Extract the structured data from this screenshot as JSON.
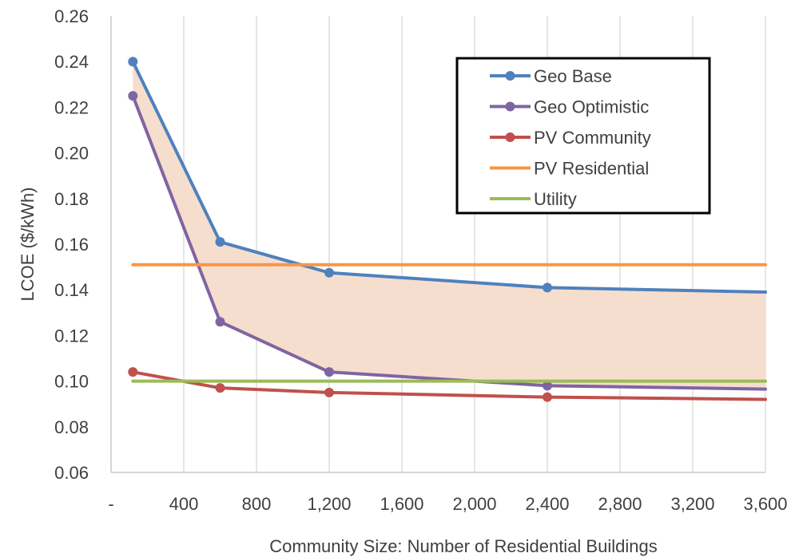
{
  "chart_data": {
    "type": "line",
    "xlabel": "Community Size: Number of Residential Buildings",
    "ylabel": "LCOE ($/kWh)",
    "xlim": [
      0,
      3600
    ],
    "ylim": [
      0.06,
      0.26
    ],
    "x_ticks": [
      {
        "value": 0,
        "label": "-"
      },
      {
        "value": 400,
        "label": "400"
      },
      {
        "value": 800,
        "label": "800"
      },
      {
        "value": 1200,
        "label": "1,200"
      },
      {
        "value": 1600,
        "label": "1,600"
      },
      {
        "value": 2000,
        "label": "2,000"
      },
      {
        "value": 2400,
        "label": "2,400"
      },
      {
        "value": 2800,
        "label": "2,800"
      },
      {
        "value": 3200,
        "label": "3,200"
      },
      {
        "value": 3600,
        "label": "3,600"
      }
    ],
    "y_ticks": [
      {
        "value": 0.06,
        "label": "0.06"
      },
      {
        "value": 0.08,
        "label": "0.08"
      },
      {
        "value": 0.1,
        "label": "0.10"
      },
      {
        "value": 0.12,
        "label": "0.12"
      },
      {
        "value": 0.14,
        "label": "0.14"
      },
      {
        "value": 0.16,
        "label": "0.16"
      },
      {
        "value": 0.18,
        "label": "0.18"
      },
      {
        "value": 0.2,
        "label": "0.20"
      },
      {
        "value": 0.22,
        "label": "0.22"
      },
      {
        "value": 0.24,
        "label": "0.24"
      },
      {
        "value": 0.26,
        "label": "0.26"
      }
    ],
    "grid": {
      "vertical": true,
      "horizontal": false
    },
    "legend_position": "top-right",
    "shaded_band": {
      "between": [
        "Geo Base",
        "Geo Optimistic"
      ],
      "color": "#f6dccb"
    },
    "series": [
      {
        "name": "Geo Base",
        "color": "#4f81bd",
        "markers": true,
        "points": [
          [
            120,
            0.24
          ],
          [
            600,
            0.161
          ],
          [
            1200,
            0.1475
          ],
          [
            2400,
            0.141
          ],
          [
            3600,
            0.139
          ]
        ],
        "marker_count": 4
      },
      {
        "name": "Geo Optimistic",
        "color": "#8064a2",
        "markers": true,
        "points": [
          [
            120,
            0.225
          ],
          [
            600,
            0.126
          ],
          [
            1200,
            0.104
          ],
          [
            2400,
            0.098
          ],
          [
            3600,
            0.0965
          ]
        ],
        "marker_count": 4
      },
      {
        "name": "PV Community",
        "color": "#c0504d",
        "markers": true,
        "points": [
          [
            120,
            0.104
          ],
          [
            600,
            0.097
          ],
          [
            1200,
            0.095
          ],
          [
            2400,
            0.093
          ],
          [
            3600,
            0.092
          ]
        ],
        "marker_count": 4
      },
      {
        "name": "PV Residential",
        "color": "#f79646",
        "markers": false,
        "points": [
          [
            120,
            0.151
          ],
          [
            3600,
            0.151
          ]
        ]
      },
      {
        "name": "Utility",
        "color": "#9bbb59",
        "markers": false,
        "points": [
          [
            120,
            0.1
          ],
          [
            3600,
            0.1
          ]
        ]
      }
    ]
  }
}
